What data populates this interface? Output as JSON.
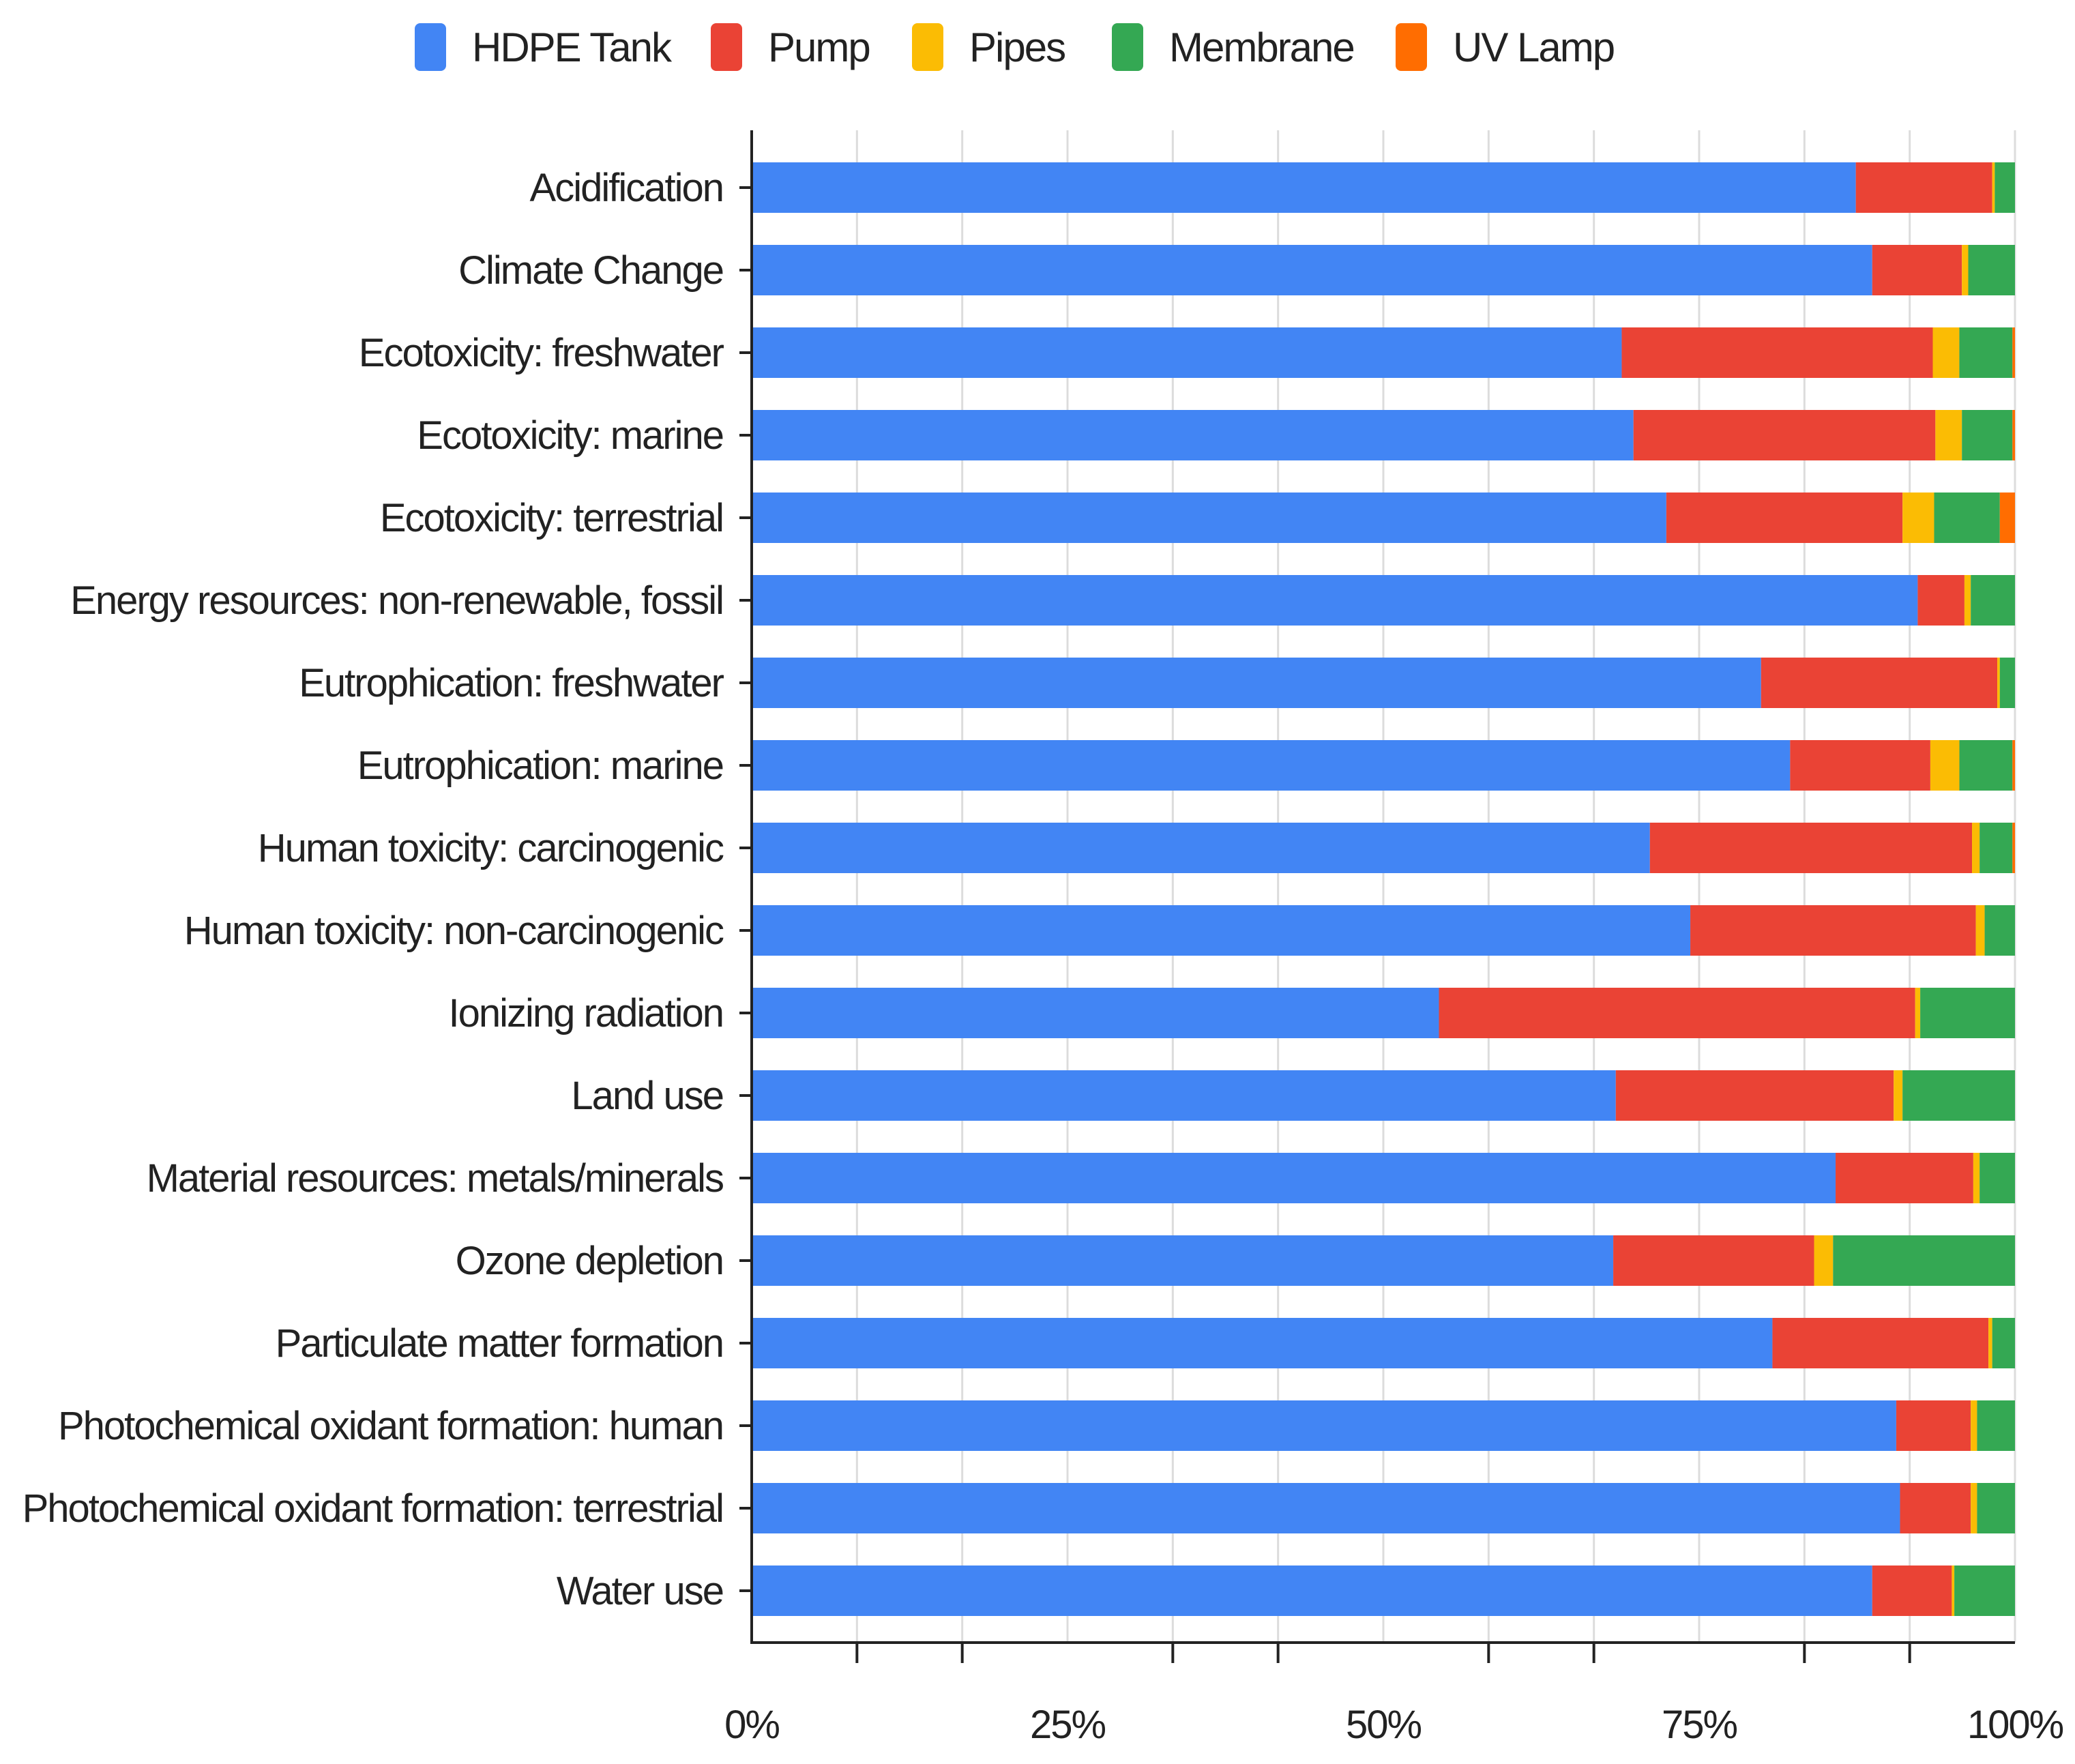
{
  "chart_data": {
    "type": "bar",
    "orientation": "horizontal",
    "stacked": "percent",
    "title": "",
    "xlabel": "",
    "ylabel": "",
    "xlim": [
      0,
      100
    ],
    "x_ticks": [
      "0%",
      "25%",
      "50%",
      "75%",
      "100%"
    ],
    "grid": true,
    "legend_position": "top",
    "categories": [
      "Acidification",
      "Climate Change",
      "Ecotoxicity: freshwater",
      "Ecotoxicity: marine",
      "Ecotoxicity: terrestrial",
      "Energy resources: non-renewable, fossil",
      "Eutrophication: freshwater",
      "Eutrophication: marine",
      "Human toxicity: carcinogenic",
      "Human toxicity: non-carcinogenic",
      "Ionizing radiation",
      "Land use",
      "Material resources: metals/minerals",
      "Ozone depletion",
      "Particulate matter formation",
      "Photochemical oxidant formation: human",
      "Photochemical oxidant formation: terrestrial",
      "Water use"
    ],
    "series": [
      {
        "name": "HDPE Tank",
        "color": "#4285F4",
        "values": [
          87.4,
          88.7,
          68.8,
          69.8,
          72.4,
          92.3,
          79.9,
          82.2,
          71.1,
          74.3,
          54.4,
          68.4,
          85.8,
          68.2,
          80.8,
          90.6,
          90.9,
          88.7
        ]
      },
      {
        "name": "Pump",
        "color": "#EA4335",
        "values": [
          10.8,
          7.1,
          24.6,
          23.9,
          18.7,
          3.7,
          18.7,
          11.1,
          25.5,
          22.6,
          37.7,
          22.0,
          10.9,
          15.9,
          17.1,
          5.9,
          5.6,
          6.3
        ]
      },
      {
        "name": "Pipes",
        "color": "#FBBC04",
        "values": [
          0.2,
          0.5,
          2.1,
          2.1,
          2.5,
          0.5,
          0.2,
          2.3,
          0.6,
          0.7,
          0.4,
          0.7,
          0.5,
          1.5,
          0.3,
          0.5,
          0.5,
          0.2
        ]
      },
      {
        "name": "Membrane",
        "color": "#34A853",
        "values": [
          1.6,
          3.7,
          4.2,
          4.0,
          5.2,
          3.5,
          1.2,
          4.2,
          2.6,
          2.4,
          7.5,
          8.9,
          2.8,
          14.4,
          1.8,
          3.0,
          3.0,
          4.8
        ]
      },
      {
        "name": "UV Lamp",
        "color": "#FF6D01",
        "values": [
          0.0,
          0.0,
          0.2,
          0.2,
          1.2,
          0.0,
          0.0,
          0.2,
          0.2,
          0.0,
          0.0,
          0.0,
          0.0,
          0.0,
          0.0,
          0.0,
          0.0,
          0.0
        ]
      }
    ]
  }
}
